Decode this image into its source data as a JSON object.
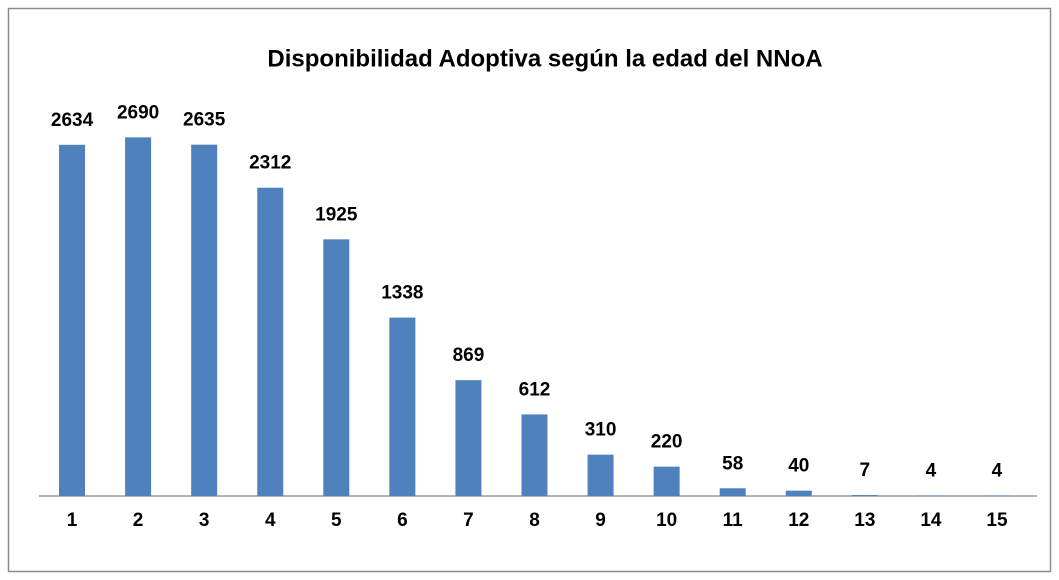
{
  "chart_data": {
    "type": "bar",
    "title": "Disponibilidad Adoptiva según la edad del NNoA",
    "categories": [
      "1",
      "2",
      "3",
      "4",
      "5",
      "6",
      "7",
      "8",
      "9",
      "10",
      "11",
      "12",
      "13",
      "14",
      "15"
    ],
    "values": [
      2634,
      2690,
      2635,
      2312,
      1925,
      1338,
      869,
      612,
      310,
      220,
      58,
      40,
      7,
      4,
      4
    ],
    "color": "#4f81bd",
    "ylim": [
      0,
      3000
    ]
  }
}
